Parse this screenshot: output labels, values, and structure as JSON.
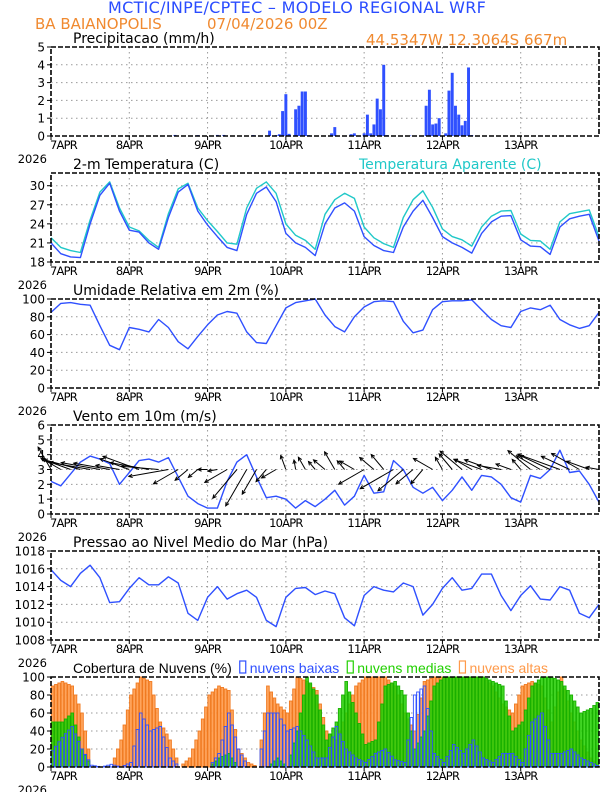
{
  "header": {
    "title": "MCTIC/INPE/CPTEC – MODELO REGIONAL WRF",
    "location": "BA BAIANOPOLIS",
    "run": "07/04/2026 00Z",
    "coords": "44.5347W 12.3064S 667m"
  },
  "colors": {
    "title": "#2a4cff",
    "orange_text": "#f08a30",
    "line_blue": "#2f50ff",
    "apparent": "#20c8c8",
    "bars_blue": "#2f50ff",
    "green": "#22d000",
    "orange_bars": "#ff9a4a"
  },
  "x_axis": {
    "hours_range": [
      0,
      168
    ],
    "tick_labels": [
      "7APR",
      "8APR",
      "9APR",
      "10APR",
      "11APR",
      "12APR",
      "13APR"
    ],
    "year_label": "2026"
  },
  "hours": [
    0,
    3,
    6,
    9,
    12,
    15,
    18,
    21,
    24,
    27,
    30,
    33,
    36,
    39,
    42,
    45,
    48,
    51,
    54,
    57,
    60,
    63,
    66,
    69,
    72,
    75,
    78,
    81,
    84,
    87,
    90,
    93,
    96,
    99,
    102,
    105,
    108,
    111,
    114,
    117,
    120,
    123,
    126,
    129,
    132,
    135,
    138,
    141,
    144,
    147,
    150,
    153,
    156,
    159,
    162,
    165,
    168
  ],
  "chart_data": [
    {
      "type": "bar",
      "title": "Precipitacao (mm/h)",
      "ylim": [
        0,
        5
      ],
      "yticks": [
        "0",
        "1",
        "2",
        "3",
        "4",
        "5"
      ],
      "grid": true,
      "hourly_nonzero": [
        [
          15,
          0.03
        ],
        [
          38,
          0.06
        ],
        [
          45,
          0.05
        ],
        [
          51,
          0.06
        ],
        [
          53,
          0.06
        ],
        [
          62,
          0.05
        ],
        [
          67,
          0.3
        ],
        [
          69,
          0.05
        ],
        [
          70,
          0.1
        ],
        [
          71,
          1.4
        ],
        [
          72,
          2.35
        ],
        [
          73,
          0.12
        ],
        [
          75,
          1.5
        ],
        [
          76,
          1.7
        ],
        [
          77,
          2.5
        ],
        [
          78,
          2.5
        ],
        [
          79,
          0.05
        ],
        [
          86,
          0.15
        ],
        [
          87,
          0.5
        ],
        [
          92,
          0.1
        ],
        [
          93,
          0.15
        ],
        [
          96,
          0.15
        ],
        [
          97,
          1.2
        ],
        [
          98,
          0.15
        ],
        [
          99,
          0.65
        ],
        [
          100,
          2.1
        ],
        [
          101,
          1.5
        ],
        [
          102,
          4.0
        ],
        [
          103,
          0.05
        ],
        [
          110,
          0.03
        ],
        [
          115,
          1.7
        ],
        [
          116,
          2.6
        ],
        [
          117,
          0.65
        ],
        [
          118,
          0.7
        ],
        [
          119,
          1.0
        ],
        [
          121,
          0.15
        ],
        [
          122,
          2.55
        ],
        [
          123,
          3.55
        ],
        [
          124,
          1.7
        ],
        [
          125,
          1.2
        ],
        [
          126,
          0.6
        ],
        [
          127,
          0.85
        ],
        [
          128,
          3.85
        ],
        [
          129,
          0.05
        ],
        [
          135,
          0.03
        ],
        [
          150,
          0.03
        ]
      ]
    },
    {
      "type": "line",
      "title": "2-m Temperatura (C)",
      "ylim": [
        18,
        32
      ],
      "yticks": [
        "18",
        "21",
        "24",
        "27",
        "30"
      ],
      "grid": true,
      "series": [
        {
          "name": "2-m Temperatura (C)",
          "values": [
            21,
            19.3,
            18.8,
            18.7,
            24,
            28.5,
            30.4,
            26,
            23,
            22.7,
            21,
            20,
            25,
            29,
            30.2,
            26,
            23.8,
            22,
            20.3,
            19.8,
            25.5,
            28.8,
            29.8,
            27.5,
            22.5,
            21,
            20.3,
            19,
            24,
            26.5,
            27.3,
            26,
            22,
            20.6,
            19.8,
            19.5,
            23.5,
            26,
            27.7,
            25,
            22,
            21,
            20.3,
            19.4,
            22.5,
            24.3,
            25.2,
            25.3,
            21.5,
            20.5,
            20.4,
            19.2,
            23.5,
            24.8,
            25.2,
            25.5,
            21.3
          ]
        },
        {
          "name": "Temperatura Aparente (C)",
          "values": [
            21.8,
            20.3,
            19.8,
            19.5,
            24.6,
            29,
            30.6,
            26.5,
            23.5,
            22.9,
            21.4,
            20.3,
            25.6,
            29.5,
            30.4,
            26.5,
            24.5,
            22.8,
            21,
            20.8,
            26.5,
            29.6,
            30.6,
            28.8,
            24,
            22.2,
            21.4,
            20,
            25.5,
            27.8,
            28.8,
            28,
            23.5,
            21.8,
            20.9,
            20.3,
            25,
            27.8,
            29.2,
            26.6,
            23.2,
            22,
            21.5,
            20.5,
            23.5,
            25.2,
            26,
            26.1,
            22.4,
            21.4,
            21.3,
            20,
            24.3,
            25.6,
            25.9,
            26.2,
            22
          ]
        }
      ]
    },
    {
      "type": "line",
      "title": "Umidade Relativa em 2m (%)",
      "ylim": [
        0,
        100
      ],
      "yticks": [
        "0",
        "20",
        "40",
        "60",
        "80",
        "100"
      ],
      "grid": true,
      "values": [
        85,
        95,
        96,
        94,
        93,
        70,
        48,
        43,
        68,
        66,
        63,
        77,
        68,
        52,
        44,
        58,
        71,
        82,
        86,
        84,
        63,
        51,
        50,
        70,
        90,
        96,
        98,
        100,
        82,
        69,
        63,
        80,
        91,
        97,
        98,
        97,
        75,
        62,
        65,
        88,
        97,
        98,
        98,
        99,
        88,
        77,
        70,
        68,
        86,
        90,
        88,
        93,
        77,
        71,
        67,
        70,
        85
      ]
    },
    {
      "type": "line",
      "title": "Vento em 10m (m/s)",
      "ylim": [
        0,
        6
      ],
      "yticks": [
        "0",
        "1",
        "2",
        "3",
        "4",
        "5",
        "6"
      ],
      "grid": true,
      "speed": [
        2.2,
        1.9,
        2.7,
        3.5,
        3.9,
        3.7,
        3.4,
        2.0,
        2.8,
        3.6,
        3.7,
        3.5,
        3.8,
        2.5,
        1.2,
        0.7,
        0.4,
        0.4,
        2.2,
        3.5,
        4.0,
        2.5,
        1.1,
        1.2,
        1.0,
        0.4,
        0.9,
        0.5,
        1.0,
        1.6,
        0.6,
        1.2,
        2.6,
        1.4,
        1.5,
        3.6,
        3.0,
        1.8,
        1.4,
        1.8,
        0.9,
        1.6,
        2.5,
        1.6,
        2.6,
        2.5,
        2.0,
        1.1,
        0.8,
        2.6,
        2.4,
        3.0,
        4.3,
        2.8,
        2.9,
        2.0,
        0.8
      ],
      "wind_direction_deg": [
        150,
        120,
        110,
        105,
        100,
        100,
        100,
        100,
        110,
        110,
        100,
        95,
        80,
        60,
        50,
        50,
        90,
        80,
        60,
        40,
        30,
        30,
        40,
        60,
        160,
        170,
        150,
        140,
        130,
        150,
        140,
        120,
        60,
        130,
        140,
        60,
        50,
        50,
        40,
        120,
        150,
        140,
        130,
        120,
        110,
        110,
        100,
        110,
        140,
        130,
        120,
        115,
        110,
        115,
        120,
        110,
        100
      ]
    },
    {
      "type": "line",
      "title": "Pressao ao Nivel Medio do Mar (hPa)",
      "ylim": [
        1008,
        1018
      ],
      "yticks": [
        "1008",
        "1010",
        "1012",
        "1014",
        "1016",
        "1018"
      ],
      "grid": true,
      "values": [
        1015.9,
        1014.7,
        1014.0,
        1015.5,
        1016.4,
        1015.0,
        1012.2,
        1012.3,
        1013.8,
        1015.0,
        1014.2,
        1014.2,
        1015.1,
        1014.4,
        1011.0,
        1010.2,
        1012.8,
        1014.0,
        1012.6,
        1013.2,
        1013.6,
        1012.8,
        1010.2,
        1009.5,
        1012.8,
        1013.8,
        1013.9,
        1013.1,
        1013.5,
        1013.2,
        1010.5,
        1009.6,
        1013.0,
        1014.0,
        1013.6,
        1013.4,
        1014.4,
        1014.0,
        1010.8,
        1012.0,
        1013.8,
        1015.0,
        1013.6,
        1013.8,
        1015.4,
        1015.4,
        1013.0,
        1011.3,
        1013.0,
        1014.1,
        1012.6,
        1012.5,
        1014.0,
        1013.6,
        1011.0,
        1010.5,
        1012.0
      ]
    },
    {
      "type": "bar",
      "title": "Cobertura de Nuvens (%)",
      "ylim": [
        0,
        100
      ],
      "yticks": [
        "0",
        "20",
        "40",
        "60",
        "80",
        "100"
      ],
      "grid": true,
      "legend": "top",
      "series": [
        {
          "name": "nuvens altas",
          "values": [
            90,
            95,
            90,
            60,
            0,
            0,
            0,
            30,
            80,
            100,
            95,
            50,
            30,
            0,
            10,
            40,
            80,
            90,
            85,
            20,
            5,
            0,
            90,
            70,
            60,
            100,
            95,
            85,
            40,
            30,
            60,
            90,
            100,
            100,
            100,
            90,
            60,
            40,
            95,
            100,
            100,
            100,
            100,
            100,
            100,
            90,
            70,
            60,
            90,
            95,
            90,
            50,
            100,
            60,
            30,
            10,
            0
          ]
        },
        {
          "name": "nuvens medias",
          "values": [
            50,
            50,
            60,
            20,
            0,
            0,
            0,
            0,
            0,
            0,
            0,
            0,
            0,
            0,
            0,
            0,
            0,
            10,
            15,
            0,
            0,
            0,
            0,
            10,
            0,
            40,
            100,
            80,
            30,
            50,
            95,
            60,
            25,
            30,
            90,
            95,
            80,
            20,
            40,
            90,
            100,
            100,
            100,
            100,
            100,
            95,
            90,
            40,
            50,
            90,
            100,
            100,
            95,
            80,
            60,
            65,
            75
          ]
        },
        {
          "name": "nuvens baixas",
          "values": [
            18,
            33,
            45,
            20,
            2,
            0,
            3,
            0,
            5,
            60,
            40,
            45,
            10,
            0,
            0,
            0,
            0,
            15,
            60,
            20,
            0,
            0,
            60,
            60,
            40,
            45,
            30,
            10,
            10,
            45,
            20,
            10,
            5,
            15,
            20,
            8,
            5,
            80,
            90,
            15,
            5,
            25,
            15,
            30,
            10,
            5,
            15,
            15,
            5,
            50,
            60,
            15,
            15,
            20,
            10,
            5,
            0
          ]
        }
      ]
    }
  ]
}
